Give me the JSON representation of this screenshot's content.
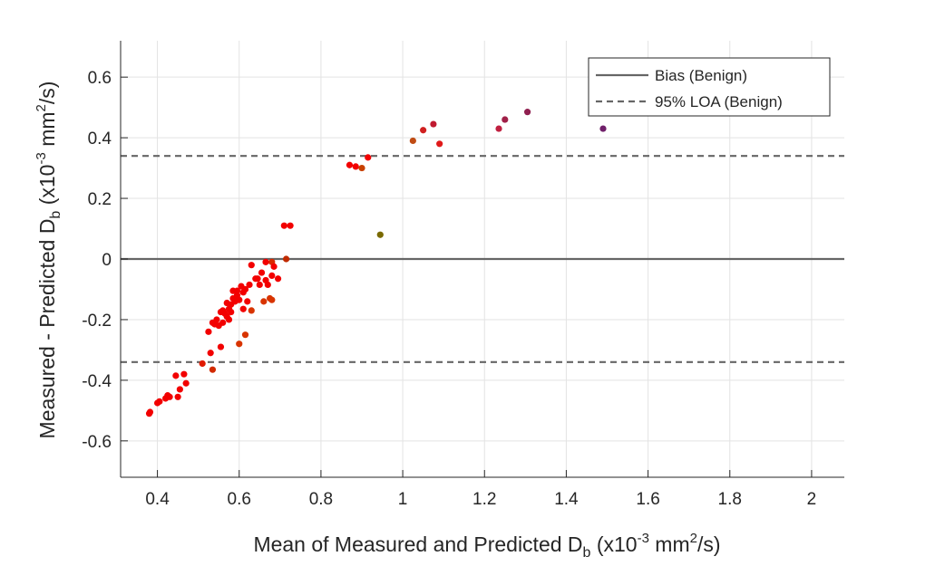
{
  "chart_data": {
    "type": "scatter",
    "xlabel": {
      "main": "Mean of Measured and Predicted D",
      "sub": "b",
      "pre": " (x10",
      "sup1": "-3",
      "mid": " mm",
      "sup2": "2",
      "post": "/s)"
    },
    "ylabel": {
      "main": "Measured - Predicted D",
      "sub": "b",
      "pre": " (x10",
      "sup1": "-3",
      "mid": " mm",
      "sup2": "2",
      "post": "/s)"
    },
    "xlim": [
      0.31,
      2.08
    ],
    "ylim": [
      -0.72,
      0.72
    ],
    "x_ticks": [
      0.4,
      0.6,
      0.8,
      1,
      1.2,
      1.4,
      1.6,
      1.8,
      2
    ],
    "x_tick_labels": [
      "0.4",
      "0.6",
      "0.8",
      "1",
      "1.2",
      "1.4",
      "1.6",
      "1.8",
      "2"
    ],
    "y_ticks": [
      -0.6,
      -0.4,
      -0.2,
      0,
      0.2,
      0.4,
      0.6
    ],
    "y_tick_labels": [
      "-0.6",
      "-0.4",
      "-0.2",
      "0",
      "0.2",
      "0.4",
      "0.6"
    ],
    "grid": true,
    "bias": 0,
    "loa_upper": 0.34,
    "loa_lower": -0.34,
    "legend": {
      "placement": "top-right",
      "entries": [
        {
          "label": "Bias (Benign)",
          "style": "solid"
        },
        {
          "label": "95% LOA (Benign)",
          "style": "dashed"
        }
      ]
    },
    "line_color": "#666666",
    "points": [
      {
        "x": 0.38,
        "y": -0.51,
        "c": "#f20000"
      },
      {
        "x": 0.382,
        "y": -0.505,
        "c": "#f20000"
      },
      {
        "x": 0.4,
        "y": -0.475,
        "c": "#f20000"
      },
      {
        "x": 0.405,
        "y": -0.47,
        "c": "#f20000"
      },
      {
        "x": 0.42,
        "y": -0.46,
        "c": "#f20000"
      },
      {
        "x": 0.425,
        "y": -0.45,
        "c": "#f20000"
      },
      {
        "x": 0.43,
        "y": -0.455,
        "c": "#f20000"
      },
      {
        "x": 0.445,
        "y": -0.385,
        "c": "#f20000"
      },
      {
        "x": 0.45,
        "y": -0.455,
        "c": "#f20000"
      },
      {
        "x": 0.455,
        "y": -0.43,
        "c": "#f20000"
      },
      {
        "x": 0.465,
        "y": -0.38,
        "c": "#f20000"
      },
      {
        "x": 0.47,
        "y": -0.41,
        "c": "#f20000"
      },
      {
        "x": 0.51,
        "y": -0.345,
        "c": "#e01a00"
      },
      {
        "x": 0.53,
        "y": -0.31,
        "c": "#f20000"
      },
      {
        "x": 0.525,
        "y": -0.24,
        "c": "#f20000"
      },
      {
        "x": 0.535,
        "y": -0.365,
        "c": "#d22a00"
      },
      {
        "x": 0.535,
        "y": -0.21,
        "c": "#f20000"
      },
      {
        "x": 0.54,
        "y": -0.215,
        "c": "#f20000"
      },
      {
        "x": 0.545,
        "y": -0.2,
        "c": "#f20000"
      },
      {
        "x": 0.55,
        "y": -0.22,
        "c": "#f20000"
      },
      {
        "x": 0.555,
        "y": -0.29,
        "c": "#f20000"
      },
      {
        "x": 0.555,
        "y": -0.175,
        "c": "#f20000"
      },
      {
        "x": 0.56,
        "y": -0.21,
        "c": "#f20000"
      },
      {
        "x": 0.56,
        "y": -0.17,
        "c": "#f20000"
      },
      {
        "x": 0.565,
        "y": -0.18,
        "c": "#f20000"
      },
      {
        "x": 0.57,
        "y": -0.19,
        "c": "#f20000"
      },
      {
        "x": 0.57,
        "y": -0.145,
        "c": "#f20000"
      },
      {
        "x": 0.575,
        "y": -0.165,
        "c": "#f20000"
      },
      {
        "x": 0.575,
        "y": -0.2,
        "c": "#f20000"
      },
      {
        "x": 0.58,
        "y": -0.15,
        "c": "#f20000"
      },
      {
        "x": 0.58,
        "y": -0.175,
        "c": "#f20000"
      },
      {
        "x": 0.585,
        "y": -0.13,
        "c": "#f20000"
      },
      {
        "x": 0.585,
        "y": -0.105,
        "c": "#f20000"
      },
      {
        "x": 0.59,
        "y": -0.14,
        "c": "#f20000"
      },
      {
        "x": 0.595,
        "y": -0.12,
        "c": "#f20000"
      },
      {
        "x": 0.595,
        "y": -0.105,
        "c": "#f20000"
      },
      {
        "x": 0.6,
        "y": -0.135,
        "c": "#f20000"
      },
      {
        "x": 0.6,
        "y": -0.28,
        "c": "#d83400"
      },
      {
        "x": 0.605,
        "y": -0.09,
        "c": "#f20000"
      },
      {
        "x": 0.61,
        "y": -0.11,
        "c": "#f20000"
      },
      {
        "x": 0.61,
        "y": -0.165,
        "c": "#f20000"
      },
      {
        "x": 0.615,
        "y": -0.1,
        "c": "#f20000"
      },
      {
        "x": 0.615,
        "y": -0.25,
        "c": "#d83400"
      },
      {
        "x": 0.62,
        "y": -0.14,
        "c": "#f20000"
      },
      {
        "x": 0.625,
        "y": -0.085,
        "c": "#f20000"
      },
      {
        "x": 0.63,
        "y": -0.02,
        "c": "#f20000"
      },
      {
        "x": 0.63,
        "y": -0.17,
        "c": "#d83400"
      },
      {
        "x": 0.64,
        "y": -0.065,
        "c": "#f20000"
      },
      {
        "x": 0.645,
        "y": -0.065,
        "c": "#f20000"
      },
      {
        "x": 0.65,
        "y": -0.085,
        "c": "#f20000"
      },
      {
        "x": 0.655,
        "y": -0.045,
        "c": "#f20000"
      },
      {
        "x": 0.66,
        "y": -0.14,
        "c": "#d83400"
      },
      {
        "x": 0.665,
        "y": -0.07,
        "c": "#f20000"
      },
      {
        "x": 0.665,
        "y": -0.01,
        "c": "#f20000"
      },
      {
        "x": 0.67,
        "y": -0.085,
        "c": "#f20000"
      },
      {
        "x": 0.675,
        "y": -0.13,
        "c": "#d83400"
      },
      {
        "x": 0.68,
        "y": -0.055,
        "c": "#f20000"
      },
      {
        "x": 0.68,
        "y": -0.01,
        "c": "#d82a00"
      },
      {
        "x": 0.68,
        "y": -0.135,
        "c": "#d83400"
      },
      {
        "x": 0.685,
        "y": -0.025,
        "c": "#f20000"
      },
      {
        "x": 0.695,
        "y": -0.065,
        "c": "#f20000"
      },
      {
        "x": 0.71,
        "y": 0.11,
        "c": "#f20000"
      },
      {
        "x": 0.725,
        "y": 0.11,
        "c": "#f20000"
      },
      {
        "x": 0.715,
        "y": 0.0,
        "c": "#c02a00"
      },
      {
        "x": 0.87,
        "y": 0.31,
        "c": "#f20000"
      },
      {
        "x": 0.885,
        "y": 0.305,
        "c": "#f20000"
      },
      {
        "x": 0.9,
        "y": 0.3,
        "c": "#c84000"
      },
      {
        "x": 0.915,
        "y": 0.335,
        "c": "#f20000"
      },
      {
        "x": 0.945,
        "y": 0.08,
        "c": "#7a6a00"
      },
      {
        "x": 1.025,
        "y": 0.39,
        "c": "#c04c14"
      },
      {
        "x": 1.05,
        "y": 0.425,
        "c": "#d02020"
      },
      {
        "x": 1.075,
        "y": 0.445,
        "c": "#c01a30"
      },
      {
        "x": 1.09,
        "y": 0.38,
        "c": "#e01a1a"
      },
      {
        "x": 1.235,
        "y": 0.43,
        "c": "#c02040"
      },
      {
        "x": 1.25,
        "y": 0.46,
        "c": "#a02048"
      },
      {
        "x": 1.305,
        "y": 0.485,
        "c": "#902050"
      },
      {
        "x": 1.49,
        "y": 0.43,
        "c": "#70206a"
      }
    ]
  }
}
